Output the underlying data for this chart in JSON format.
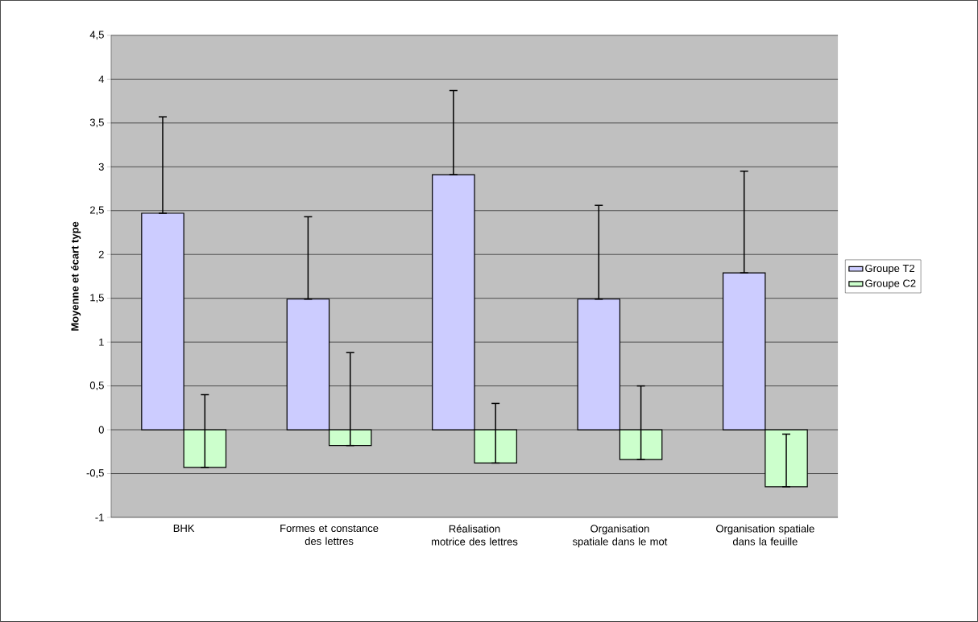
{
  "chart_data": {
    "type": "bar",
    "ylabel": "Moyenne et écart type",
    "categories": [
      "BHK",
      "Formes et constance des lettres",
      "Réalisation motrice des lettres",
      "Organisation spatiale dans le mot",
      "Organisation spatiale dans la feuille"
    ],
    "series": [
      {
        "name": "Groupe T2",
        "color": "#ccccff",
        "values": [
          2.47,
          1.49,
          2.91,
          1.49,
          1.79
        ],
        "errors": [
          [
            2.47,
            3.57
          ],
          [
            1.49,
            2.43
          ],
          [
            2.91,
            3.87
          ],
          [
            1.49,
            2.56
          ],
          [
            1.79,
            2.95
          ]
        ]
      },
      {
        "name": "Groupe C2",
        "color": "#ccffcc",
        "values": [
          -0.43,
          -0.18,
          -0.38,
          -0.34,
          -0.65
        ],
        "errors": [
          [
            -0.43,
            0.4
          ],
          [
            -0.18,
            0.88
          ],
          [
            -0.38,
            0.3
          ],
          [
            -0.34,
            0.5
          ],
          [
            -0.65,
            -0.05
          ]
        ]
      }
    ],
    "ylim": [
      -1,
      4.5
    ],
    "yticks": [
      -1,
      {
        "value": -0.5,
        "label": "-0,5"
      },
      0,
      {
        "value": 0.5,
        "label": "0,5"
      },
      1,
      {
        "value": 1.5,
        "label": "1,5"
      },
      2,
      {
        "value": 2.5,
        "label": "2,5"
      },
      3,
      {
        "value": 3.5,
        "label": "3,5"
      },
      4,
      {
        "value": 4.5,
        "label": "4,5"
      }
    ],
    "grid": "y",
    "legend": "right"
  }
}
